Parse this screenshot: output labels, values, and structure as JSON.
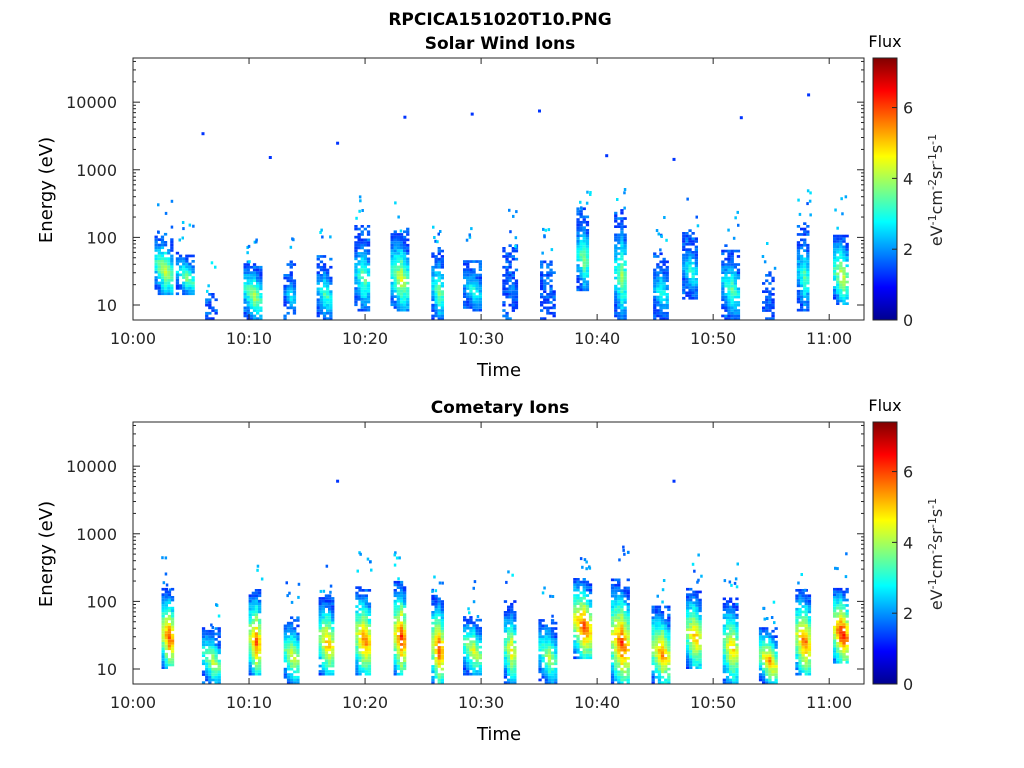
{
  "figure": {
    "title": "RPCICA151020T10.PNG"
  },
  "chart_data": [
    {
      "type": "heatmap",
      "title": "Solar Wind Ions",
      "xlabel": "Time",
      "ylabel": "Energy (eV)",
      "x_range": [
        "10:00",
        "11:03"
      ],
      "x_ticks": [
        "10:00",
        "10:10",
        "10:20",
        "10:30",
        "10:40",
        "10:50",
        "11:00"
      ],
      "y_scale": "log",
      "y_range": [
        6,
        45000
      ],
      "y_ticks": [
        "10",
        "100",
        "1000",
        "10000"
      ],
      "colorbar": {
        "label": "Flux",
        "unit": "eV⁻¹cm⁻²sr⁻¹s⁻¹",
        "range": [
          0,
          7.4
        ],
        "ticks": [
          "0",
          "2",
          "4",
          "6"
        ],
        "colormap": "jet"
      },
      "bursts": [
        {
          "t": "10:02:40",
          "log_flux_peak": 4.8,
          "e_low": 14,
          "e_high": 110
        },
        {
          "t": "10:04:30",
          "log_flux_peak": 4.2,
          "e_low": 14,
          "e_high": 60
        },
        {
          "t": "10:06:45",
          "log_flux_peak": 1.8,
          "e_low": 6,
          "e_high": 15
        },
        {
          "t": "10:10:20",
          "log_flux_peak": 4.5,
          "e_low": 6,
          "e_high": 45
        },
        {
          "t": "10:13:30",
          "log_flux_peak": 3.0,
          "e_low": 6,
          "e_high": 45
        },
        {
          "t": "10:16:30",
          "log_flux_peak": 3.8,
          "e_low": 6,
          "e_high": 50
        },
        {
          "t": "10:19:45",
          "log_flux_peak": 4.0,
          "e_low": 8,
          "e_high": 140
        },
        {
          "t": "10:23:00",
          "log_flux_peak": 4.8,
          "e_low": 8,
          "e_high": 130
        },
        {
          "t": "10:26:15",
          "log_flux_peak": 4.2,
          "e_low": 6,
          "e_high": 70
        },
        {
          "t": "10:29:15",
          "log_flux_peak": 3.5,
          "e_low": 8,
          "e_high": 45
        },
        {
          "t": "10:32:30",
          "log_flux_peak": 2.4,
          "e_low": 6,
          "e_high": 75
        },
        {
          "t": "10:35:45",
          "log_flux_peak": 1.8,
          "e_low": 6,
          "e_high": 45
        },
        {
          "t": "10:38:45",
          "log_flux_peak": 4.2,
          "e_low": 16,
          "e_high": 260
        },
        {
          "t": "10:42:00",
          "log_flux_peak": 4.3,
          "e_low": 6,
          "e_high": 260
        },
        {
          "t": "10:45:30",
          "log_flux_peak": 3.5,
          "e_low": 6,
          "e_high": 60
        },
        {
          "t": "10:48:00",
          "log_flux_peak": 3.5,
          "e_low": 12,
          "e_high": 130
        },
        {
          "t": "10:51:30",
          "log_flux_peak": 3.8,
          "e_low": 6,
          "e_high": 80
        },
        {
          "t": "10:54:45",
          "log_flux_peak": 2.2,
          "e_low": 6,
          "e_high": 30
        },
        {
          "t": "10:57:45",
          "log_flux_peak": 3.8,
          "e_low": 8,
          "e_high": 160
        },
        {
          "t": "11:01:00",
          "log_flux_peak": 5.0,
          "e_low": 10,
          "e_high": 120
        }
      ],
      "isolated_points_eV": [
        3600,
        1600,
        2600,
        6300,
        7000,
        7800,
        1700,
        1500,
        6200,
        13500
      ]
    },
    {
      "type": "heatmap",
      "title": "Cometary Ions",
      "xlabel": "Time",
      "ylabel": "Energy (eV)",
      "x_range": [
        "10:00",
        "11:03"
      ],
      "x_ticks": [
        "10:00",
        "10:10",
        "10:20",
        "10:30",
        "10:40",
        "10:50",
        "11:00"
      ],
      "y_scale": "log",
      "y_range": [
        6,
        45000
      ],
      "y_ticks": [
        "10",
        "100",
        "1000",
        "10000"
      ],
      "colorbar": {
        "label": "Flux",
        "unit": "eV⁻¹cm⁻²sr⁻¹s⁻¹",
        "range": [
          0,
          7.4
        ],
        "ticks": [
          "0",
          "2",
          "4",
          "6"
        ],
        "colormap": "jet"
      },
      "bursts": [
        {
          "t": "10:03:00",
          "log_flux_peak": 6.5,
          "e_low": 10,
          "e_high": 150
        },
        {
          "t": "10:06:45",
          "log_flux_peak": 4.8,
          "e_low": 6,
          "e_high": 40
        },
        {
          "t": "10:10:30",
          "log_flux_peak": 6.3,
          "e_low": 8,
          "e_high": 150
        },
        {
          "t": "10:13:40",
          "log_flux_peak": 5.0,
          "e_low": 6,
          "e_high": 60
        },
        {
          "t": "10:16:40",
          "log_flux_peak": 5.8,
          "e_low": 8,
          "e_high": 120
        },
        {
          "t": "10:19:50",
          "log_flux_peak": 6.2,
          "e_low": 8,
          "e_high": 160
        },
        {
          "t": "10:23:00",
          "log_flux_peak": 6.6,
          "e_low": 8,
          "e_high": 200
        },
        {
          "t": "10:26:15",
          "log_flux_peak": 6.5,
          "e_low": 6,
          "e_high": 120
        },
        {
          "t": "10:29:15",
          "log_flux_peak": 5.0,
          "e_low": 8,
          "e_high": 60
        },
        {
          "t": "10:32:30",
          "log_flux_peak": 5.2,
          "e_low": 6,
          "e_high": 100
        },
        {
          "t": "10:35:45",
          "log_flux_peak": 4.5,
          "e_low": 6,
          "e_high": 60
        },
        {
          "t": "10:38:45",
          "log_flux_peak": 6.5,
          "e_low": 14,
          "e_high": 220
        },
        {
          "t": "10:42:00",
          "log_flux_peak": 6.5,
          "e_low": 6,
          "e_high": 200
        },
        {
          "t": "10:45:30",
          "log_flux_peak": 6.0,
          "e_low": 6,
          "e_high": 80
        },
        {
          "t": "10:48:20",
          "log_flux_peak": 5.8,
          "e_low": 10,
          "e_high": 150
        },
        {
          "t": "10:51:30",
          "log_flux_peak": 5.5,
          "e_low": 6,
          "e_high": 120
        },
        {
          "t": "10:54:45",
          "log_flux_peak": 5.8,
          "e_low": 6,
          "e_high": 40
        },
        {
          "t": "10:57:45",
          "log_flux_peak": 6.3,
          "e_low": 8,
          "e_high": 150
        },
        {
          "t": "11:01:00",
          "log_flux_peak": 7.0,
          "e_low": 12,
          "e_high": 150
        }
      ],
      "isolated_points_eV": [
        6300,
        6300
      ]
    }
  ]
}
